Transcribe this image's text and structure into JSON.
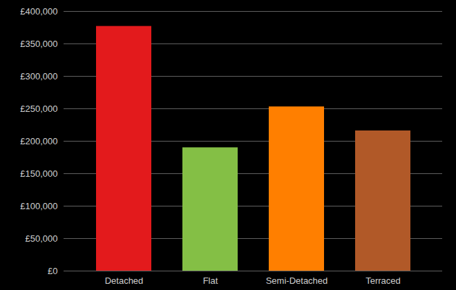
{
  "chart_data": {
    "type": "bar",
    "categories": [
      "Detached",
      "Flat",
      "Semi-Detached",
      "Terraced"
    ],
    "values": [
      377000,
      190000,
      253000,
      216000
    ],
    "colors": [
      "#e31a1c",
      "#84bf45",
      "#ff7f00",
      "#b15928"
    ],
    "ylim": [
      0,
      400000
    ],
    "yticks": [
      {
        "value": 0,
        "label": "£0"
      },
      {
        "value": 50000,
        "label": "£50,000"
      },
      {
        "value": 100000,
        "label": "£100,000"
      },
      {
        "value": 150000,
        "label": "£150,000"
      },
      {
        "value": 200000,
        "label": "£200,000"
      },
      {
        "value": 250000,
        "label": "£250,000"
      },
      {
        "value": 300000,
        "label": "£300,000"
      },
      {
        "value": 350000,
        "label": "£350,000"
      },
      {
        "value": 400000,
        "label": "£400,000"
      }
    ],
    "grid": true
  }
}
